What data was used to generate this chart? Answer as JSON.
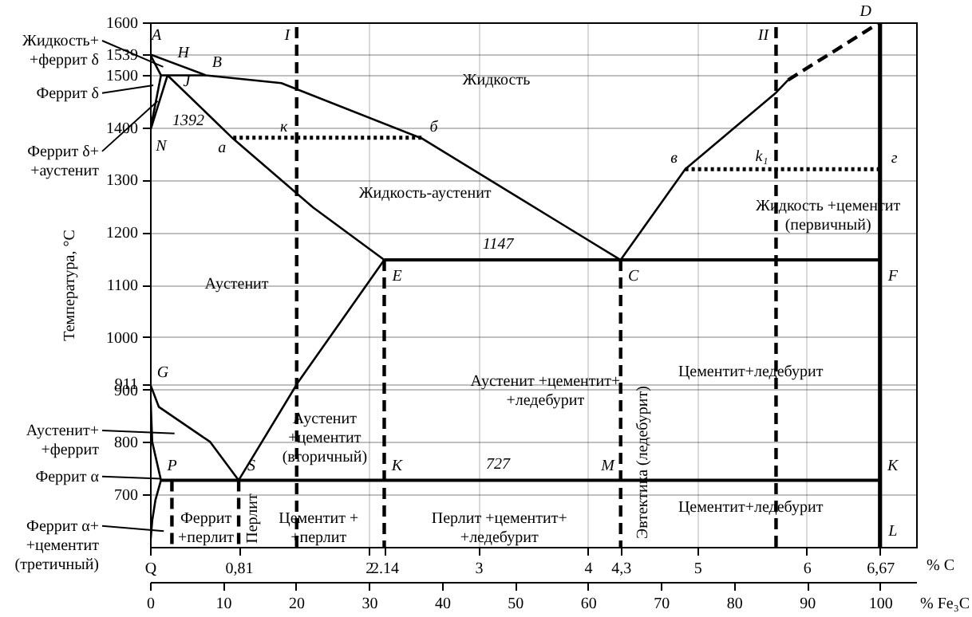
{
  "chart_data": {
    "type": "line",
    "xlabel": "% C",
    "ylabel": "Температура, °С",
    "x2label": "% Fe₃C",
    "xlim": [
      0,
      7
    ],
    "ylim": [
      600,
      1600
    ],
    "x2lim": [
      0,
      104.95
    ],
    "xticks": [
      {
        "value": 0,
        "label": "Q"
      },
      {
        "value": 0.81,
        "label": "0,81"
      },
      2,
      {
        "value": 2.14,
        "label": "2.14"
      },
      3,
      4,
      {
        "value": 4.3,
        "label": "4,3"
      },
      5,
      6,
      {
        "value": 6.67,
        "label": "6,67"
      }
    ],
    "yticks": [
      700,
      800,
      900,
      911,
      1000,
      1100,
      1200,
      1300,
      1400,
      1500,
      1539,
      1600
    ],
    "x2ticks": [
      0,
      10,
      20,
      30,
      40,
      50,
      60,
      70,
      80,
      90,
      100
    ],
    "grid": true,
    "series": [
      {
        "color": "#000000",
        "line_style": "solid",
        "x": [
          0.1,
          0,
          0.51,
          1.2,
          2.49,
          3.75,
          4.3,
          4.89,
          5.72,
          5.83
        ],
        "values": [
          1499,
          1539,
          1499,
          1484,
          1378,
          1217,
          1147,
          1320,
          1466,
          1490
        ]
      },
      {
        "color": "#000000",
        "line_style": "dashed",
        "x": [
          5.83,
          6.67
        ],
        "values": [
          1490,
          1600
        ]
      },
      {
        "color": "#000000",
        "line_style": "solid",
        "x": [
          0.1,
          0.51
        ],
        "values": [
          1499,
          1499
        ]
      },
      {
        "color": "#000000",
        "line_style": "solid",
        "x": [
          0.1,
          0
        ],
        "values": [
          1499,
          1392
        ]
      },
      {
        "color": "#000000",
        "line_style": "solid",
        "x": [
          0.16,
          0
        ],
        "values": [
          1499,
          1392
        ]
      },
      {
        "color": "#000000",
        "line_style": "solid",
        "x": [
          0.16,
          0.76,
          1.49,
          2.14
        ],
        "values": [
          1499,
          1378,
          1247,
          1147
        ]
      },
      {
        "color": "#000000",
        "line_style": "solid",
        "x": [
          2.14,
          6.67
        ],
        "values": [
          1147,
          1147
        ]
      },
      {
        "color": "#000000",
        "line_style": "solid",
        "x": [
          0,
          0.08,
          0.55,
          0.81
        ],
        "values": [
          911,
          867,
          800,
          727
        ]
      },
      {
        "color": "#000000",
        "line_style": "solid",
        "x": [
          0.81,
          1.35,
          2.14
        ],
        "values": [
          727,
          913,
          1147
        ]
      },
      {
        "color": "#000000",
        "line_style": "solid",
        "x": [
          0,
          0.02,
          0.1
        ],
        "values": [
          911,
          800,
          727
        ]
      },
      {
        "color": "#000000",
        "line_style": "solid",
        "x": [
          0.1,
          0.05,
          0.02,
          0
        ],
        "values": [
          727,
          690,
          650,
          600
        ]
      },
      {
        "color": "#000000",
        "line_style": "solid",
        "x": [
          0.1,
          6.67
        ],
        "values": [
          727,
          727
        ]
      },
      {
        "color": "#000000",
        "line_style": "solid",
        "x": [
          6.67,
          6.67
        ],
        "values": [
          600,
          1600
        ]
      },
      {
        "color": "#000000",
        "line_style": "dashed",
        "x": [
          1.34,
          1.34
        ],
        "values": [
          600,
          1600
        ]
      },
      {
        "color": "#000000",
        "line_style": "dashed",
        "x": [
          5.72,
          5.72
        ],
        "values": [
          600,
          1600
        ]
      },
      {
        "color": "#000000",
        "line_style": "dashed",
        "x": [
          0.81,
          0.81
        ],
        "values": [
          727,
          600
        ]
      },
      {
        "color": "#000000",
        "line_style": "dashed",
        "x": [
          2.14,
          2.14
        ],
        "values": [
          1147,
          600
        ]
      },
      {
        "color": "#000000",
        "line_style": "dashed",
        "x": [
          4.3,
          4.3
        ],
        "values": [
          1147,
          600
        ]
      },
      {
        "color": "#000000",
        "line_style": "dashed",
        "x": [
          0.2,
          0.2
        ],
        "values": [
          727,
          600
        ]
      },
      {
        "color": "#000000",
        "line_style": "dotted",
        "x": [
          0.76,
          2.49
        ],
        "values": [
          1380,
          1380
        ]
      },
      {
        "color": "#000000",
        "line_style": "dotted",
        "x": [
          4.89,
          6.67
        ],
        "values": [
          1320,
          1320
        ]
      }
    ],
    "annotations": [
      {
        "text": "Жидкость+\n+феррит δ",
        "x": 0.12,
        "y": 1515
      },
      {
        "text": "Феррит δ",
        "x": 0.03,
        "y": 1480
      },
      {
        "text": "Феррит δ+\n+аустенит",
        "x": 0.07,
        "y": 1450
      },
      "Аустенит+\n+феррит",
      "Феррит α",
      "Феррит α+\n+цементит\n(третичный)",
      "Жидкость",
      "Жидкость-аустенит",
      "Жидкость +цементит\n(первичный)",
      "Аустенит",
      "Аустенит\n+цементит\n(вторичный)",
      "Аустенит +цементит+\n+ледебурит",
      "Цементит+ледебурит",
      "Цементит+ледебурит",
      "Перлит",
      "Феррит\n+перлит",
      "Цементит +\n+перлит",
      "Перлит +цементит+\n+ледебурит",
      "Эвтектика (ледебурит)",
      {
        "text": "A",
        "x": 0,
        "y": 1539
      },
      {
        "text": "B",
        "x": 0.51,
        "y": 1499
      },
      {
        "text": "H",
        "x": 0.1,
        "y": 1499
      },
      {
        "text": "J",
        "x": 0.16,
        "y": 1499
      },
      {
        "text": "N",
        "x": 0,
        "y": 1392
      },
      {
        "text": "1392",
        "x": 0,
        "y": 1392
      },
      {
        "text": "а",
        "x": 0.76,
        "y": 1380
      },
      {
        "text": "к",
        "x": 1.34,
        "y": 1380
      },
      {
        "text": "б",
        "x": 2.49,
        "y": 1380
      },
      {
        "text": "E",
        "x": 2.14,
        "y": 1147
      },
      {
        "text": "1147",
        "x": 3.18,
        "y": 1147
      },
      {
        "text": "C",
        "x": 4.3,
        "y": 1147
      },
      {
        "text": "F",
        "x": 6.67,
        "y": 1147
      },
      {
        "text": "D",
        "x": 6.67,
        "y": 1600
      },
      {
        "text": "в",
        "x": 4.89,
        "y": 1320
      },
      {
        "text": "k₁",
        "x": 5.72,
        "y": 1320
      },
      {
        "text": "г",
        "x": 6.67,
        "y": 1320
      },
      {
        "text": "I",
        "x": 1.34,
        "y": 1600
      },
      {
        "text": "II",
        "x": 5.72,
        "y": 1600
      },
      {
        "text": "G",
        "x": 0,
        "y": 911
      },
      {
        "text": "P",
        "x": 0.1,
        "y": 727
      },
      {
        "text": "S",
        "x": 0.81,
        "y": 727
      },
      {
        "text": "K",
        "x": 2.14,
        "y": 727
      },
      {
        "text": "727",
        "x": 3.18,
        "y": 727
      },
      {
        "text": "M",
        "x": 4.3,
        "y": 727
      },
      {
        "text": "K",
        "x": 6.67,
        "y": 727
      },
      {
        "text": "L",
        "x": 6.67,
        "y": 600
      }
    ]
  }
}
